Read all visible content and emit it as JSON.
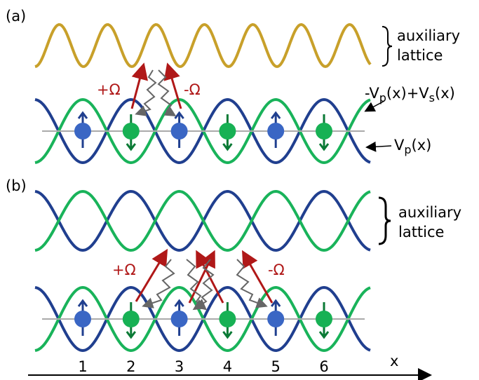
{
  "panels": [
    {
      "label": "(a)",
      "auxiliary": [
        "auxiliary",
        "lattice"
      ],
      "plus": "+Ω",
      "minus": "-Ω",
      "potentials": [
        [
          "-V",
          "p",
          "(x)+V",
          "s",
          "(x)"
        ],
        [
          "V",
          "p",
          "(x)"
        ]
      ]
    },
    {
      "label": "(b)",
      "auxiliary": [
        "auxiliary",
        "lattice"
      ],
      "plus": "+Ω",
      "minus": "-Ω"
    }
  ],
  "sites": [
    "1",
    "2",
    "3",
    "4",
    "5",
    "6"
  ],
  "axis_label": "x"
}
